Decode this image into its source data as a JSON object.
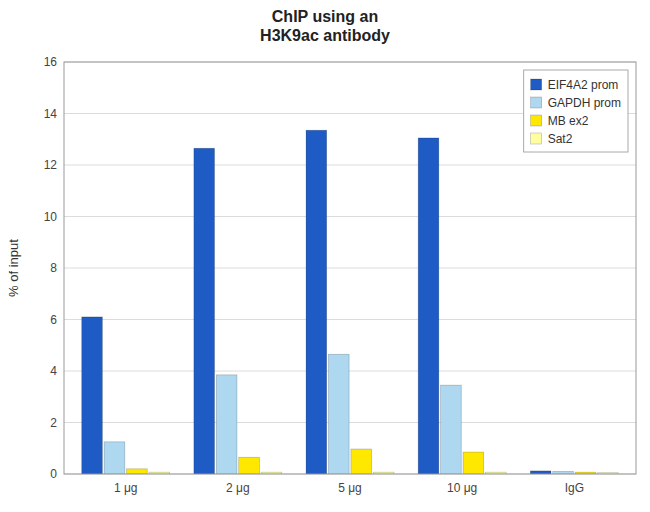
{
  "chart_data": {
    "type": "bar",
    "title": "ChIP using an\nH3K9ac antibody",
    "ylabel": "% of input",
    "categories": [
      "1 μg",
      "2 μg",
      "5 μg",
      "10 μg",
      "IgG"
    ],
    "series": [
      {
        "name": "EIF4A2 prom",
        "color": "#1F5BC4",
        "values": [
          6.1,
          12.65,
          13.35,
          13.05,
          0.12
        ]
      },
      {
        "name": "GAPDH prom",
        "color": "#ADD8F0",
        "values": [
          1.25,
          3.85,
          4.65,
          3.45,
          0.1
        ]
      },
      {
        "name": "MB ex2",
        "color": "#FFE800",
        "values": [
          0.2,
          0.65,
          0.97,
          0.85,
          0.07
        ]
      },
      {
        "name": "Sat2",
        "color": "#FFFFA0",
        "values": [
          0.07,
          0.07,
          0.07,
          0.07,
          0.05
        ]
      }
    ],
    "ylim": [
      0,
      16
    ],
    "yticks": [
      0,
      2,
      4,
      6,
      8,
      10,
      12,
      14,
      16
    ],
    "grid": true,
    "legend": "upper right"
  }
}
